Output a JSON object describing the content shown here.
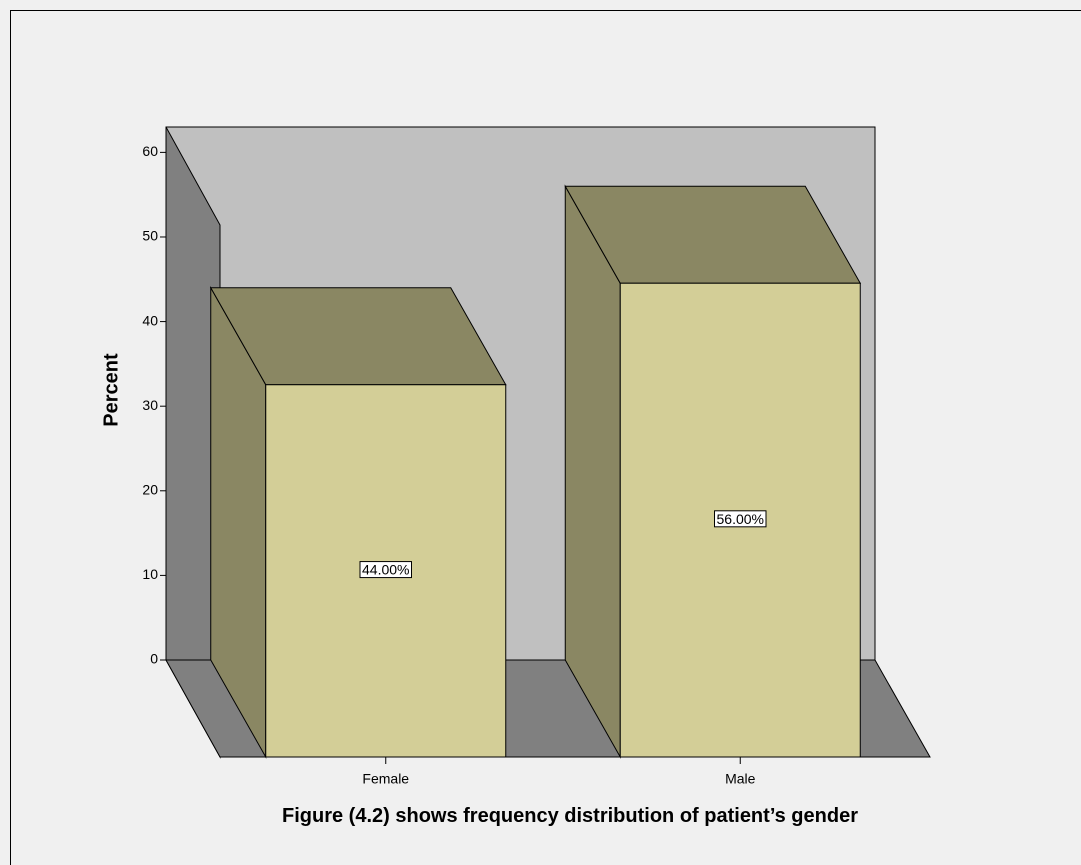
{
  "chart_data": {
    "type": "bar3d",
    "title": "Figure (4.2) shows frequency distribution of patient’s gender",
    "ylabel": "Percent",
    "categories": [
      "Female",
      "Male"
    ],
    "values": [
      44,
      56
    ],
    "value_labels": [
      "44.00%",
      "56.00%"
    ],
    "color": "#d3ce97",
    "ylim": [
      0,
      63
    ],
    "yticks": [
      0,
      10,
      20,
      30,
      40,
      50,
      60
    ]
  }
}
